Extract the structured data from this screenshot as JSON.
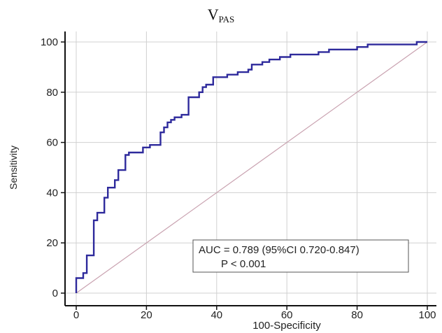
{
  "chart_data": {
    "type": "line",
    "title_main": "V",
    "title_sub": "PAS",
    "xlabel": "100-Specificity",
    "ylabel": "Sensitivity",
    "xlim": [
      0,
      100
    ],
    "ylim": [
      0,
      100
    ],
    "x_ticks": [
      "0",
      "20",
      "40",
      "60",
      "80",
      "100"
    ],
    "y_ticks": [
      "0",
      "20",
      "40",
      "60",
      "80",
      "100"
    ],
    "grid": true,
    "series": [
      {
        "color": "#2e2a9c",
        "step": true,
        "points": [
          [
            0,
            0
          ],
          [
            0,
            6
          ],
          [
            2,
            6
          ],
          [
            2,
            8
          ],
          [
            3,
            8
          ],
          [
            3,
            15
          ],
          [
            5,
            15
          ],
          [
            5,
            29
          ],
          [
            6,
            29
          ],
          [
            6,
            32
          ],
          [
            8,
            32
          ],
          [
            8,
            38
          ],
          [
            9,
            38
          ],
          [
            9,
            42
          ],
          [
            11,
            42
          ],
          [
            11,
            45
          ],
          [
            12,
            45
          ],
          [
            12,
            49
          ],
          [
            14,
            49
          ],
          [
            14,
            55
          ],
          [
            15,
            55
          ],
          [
            15,
            56
          ],
          [
            19,
            56
          ],
          [
            19,
            58
          ],
          [
            21,
            58
          ],
          [
            21,
            59
          ],
          [
            24,
            59
          ],
          [
            24,
            64
          ],
          [
            25,
            64
          ],
          [
            25,
            66
          ],
          [
            26,
            66
          ],
          [
            26,
            68
          ],
          [
            27,
            68
          ],
          [
            27,
            69
          ],
          [
            28,
            69
          ],
          [
            28,
            70
          ],
          [
            30,
            70
          ],
          [
            30,
            71
          ],
          [
            32,
            71
          ],
          [
            32,
            78
          ],
          [
            35,
            78
          ],
          [
            35,
            80
          ],
          [
            36,
            80
          ],
          [
            36,
            82
          ],
          [
            37,
            82
          ],
          [
            37,
            83
          ],
          [
            39,
            83
          ],
          [
            39,
            86
          ],
          [
            43,
            86
          ],
          [
            43,
            87
          ],
          [
            46,
            87
          ],
          [
            46,
            88
          ],
          [
            49,
            88
          ],
          [
            49,
            89
          ],
          [
            50,
            89
          ],
          [
            50,
            91
          ],
          [
            53,
            91
          ],
          [
            53,
            92
          ],
          [
            55,
            92
          ],
          [
            55,
            93
          ],
          [
            58,
            93
          ],
          [
            58,
            94
          ],
          [
            61,
            94
          ],
          [
            61,
            95
          ],
          [
            69,
            95
          ],
          [
            69,
            96
          ],
          [
            72,
            96
          ],
          [
            72,
            97
          ],
          [
            80,
            97
          ],
          [
            80,
            98
          ],
          [
            83,
            98
          ],
          [
            83,
            99
          ],
          [
            97,
            99
          ],
          [
            97,
            100
          ],
          [
            100,
            100
          ]
        ]
      },
      {
        "color": "#c9a2b0",
        "step": false,
        "points": [
          [
            0,
            0
          ],
          [
            100,
            100
          ]
        ]
      }
    ],
    "annotation": {
      "line1": "AUC = 0.789 (95%CI 0.720-0.847)",
      "line2": "P < 0.001"
    }
  }
}
